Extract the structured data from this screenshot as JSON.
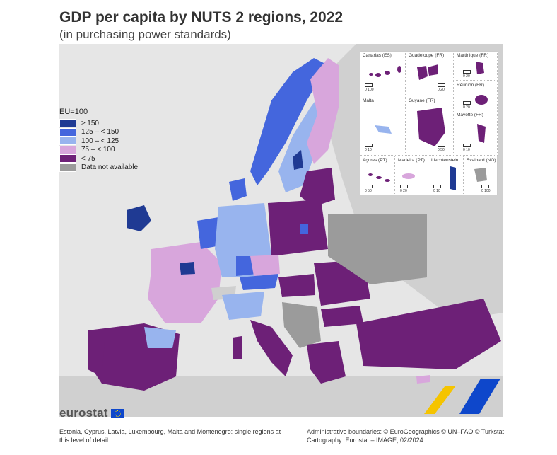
{
  "title": "GDP per capita by NUTS 2 regions, 2022",
  "subtitle": "(in purchasing power standards)",
  "legend": {
    "title": "EU=100",
    "items": [
      {
        "label": "≥ 150",
        "color": "#1f3a93"
      },
      {
        "label": "125 – < 150",
        "color": "#4466dd"
      },
      {
        "label": "100 – < 125",
        "color": "#98b4ee"
      },
      {
        "label": "75 – < 100",
        "color": "#d8a6dc"
      },
      {
        "label": "< 75",
        "color": "#6d2077"
      },
      {
        "label": "Data not available",
        "color": "#9b9b9b"
      }
    ]
  },
  "insets": {
    "canarias": {
      "label": "Canarias (ES)",
      "scale": "0   100"
    },
    "guadeloupe": {
      "label": "Guadeloupe (FR)",
      "scale": "0   20"
    },
    "martinique": {
      "label": "Martinique (FR)",
      "scale": "0   20"
    },
    "reunion": {
      "label": "Réunion (FR)",
      "scale": "0   20"
    },
    "malta": {
      "label": "Malta",
      "scale": "0   10"
    },
    "guyane": {
      "label": "Guyane (FR)",
      "scale": "0   50"
    },
    "mayotte": {
      "label": "Mayotte (FR)",
      "scale": "0   10"
    },
    "acores": {
      "label": "Açores (PT)",
      "scale": "0   50"
    },
    "madeira": {
      "label": "Madeira (PT)",
      "scale": "0   20"
    },
    "liechtenstein": {
      "label": "Liechtenstein",
      "scale": "0   10"
    },
    "svalbard": {
      "label": "Svalbard (NO)",
      "scale": "0   100"
    }
  },
  "logo": {
    "text": "eurostat",
    "icon": "eu-flag-icon"
  },
  "footer": {
    "note_line1": "Estonia, Cyprus, Latvia, Luxembourg, Malta and Montenegro: single regions at",
    "note_line2": "this level of detail.",
    "credits_line1": "Administrative boundaries: © EuroGeographics © UN–FAO © Turkstat",
    "credits_line2": "Cartography: Eurostat – IMAGE, 02/2024"
  }
}
